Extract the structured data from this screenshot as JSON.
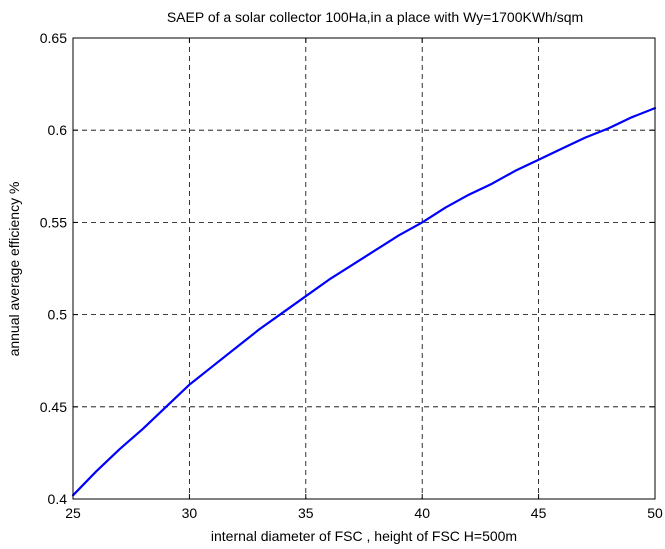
{
  "chart_data": {
    "type": "line",
    "title": "SAEP of a solar collector 100Ha,in a place with Wy=1700KWh/sqm",
    "xlabel": "internal diameter of FSC , height of FSC H=500m",
    "ylabel": "annual average efficiency %",
    "xlim": [
      25,
      50
    ],
    "ylim": [
      0.4,
      0.65
    ],
    "xticks": [
      25,
      30,
      35,
      40,
      45,
      50
    ],
    "xtick_labels": [
      "25",
      "30",
      "35",
      "40",
      "45",
      "50"
    ],
    "yticks": [
      0.4,
      0.45,
      0.5,
      0.55,
      0.6,
      0.65
    ],
    "ytick_labels": [
      "0.4",
      "0.45",
      "0.5",
      "0.55",
      "0.6",
      "0.65"
    ],
    "grid": true,
    "series": [
      {
        "color": "#0000ff",
        "x": [
          25,
          26,
          27,
          28,
          29,
          30,
          31,
          32,
          33,
          34,
          35,
          36,
          37,
          38,
          39,
          40,
          41,
          42,
          43,
          44,
          45,
          46,
          47,
          48,
          49,
          50
        ],
        "y": [
          0.402,
          0.415,
          0.427,
          0.438,
          0.45,
          0.462,
          0.472,
          0.482,
          0.492,
          0.501,
          0.51,
          0.519,
          0.527,
          0.535,
          0.543,
          0.55,
          0.558,
          0.565,
          0.571,
          0.578,
          0.584,
          0.59,
          0.596,
          0.601,
          0.607,
          0.612
        ]
      }
    ]
  }
}
